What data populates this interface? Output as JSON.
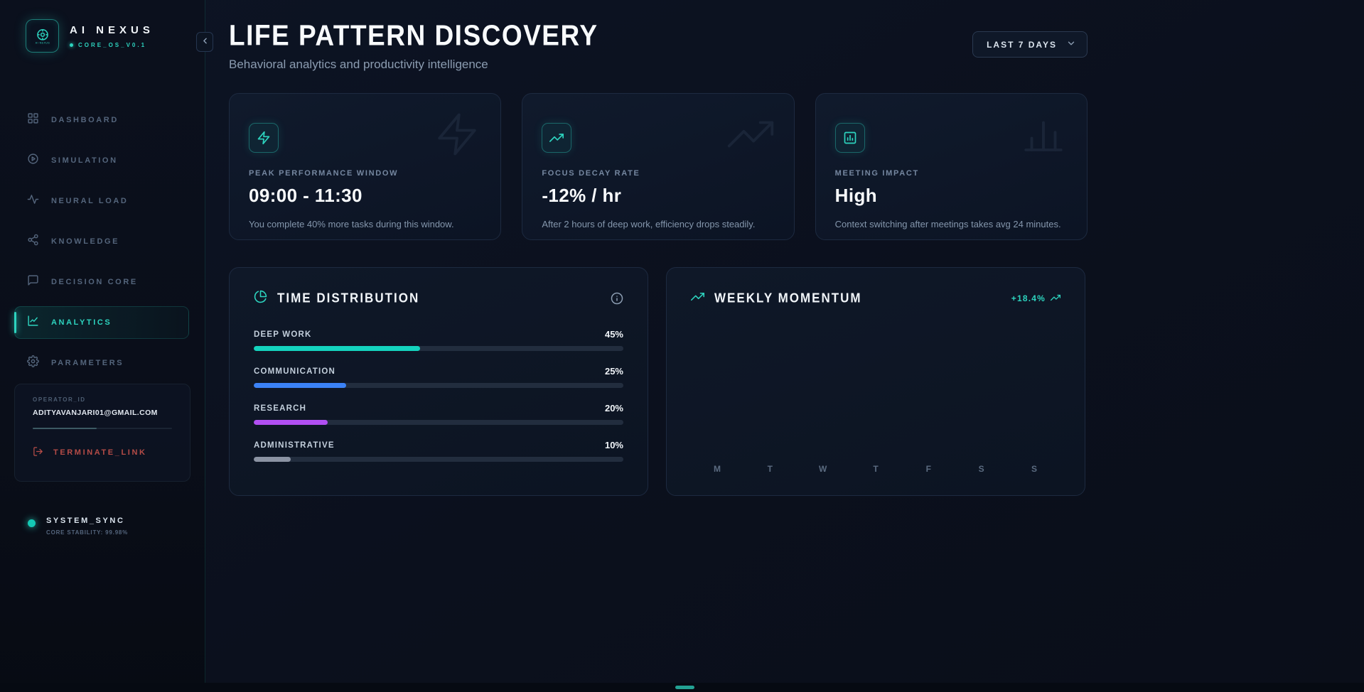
{
  "colors": {
    "accent": "#2dd4bf",
    "blue": "#3b82f6",
    "purple": "#b14ff2",
    "gray": "#8b93a3",
    "danger": "#b64c47"
  },
  "app": {
    "name": "AI NEXUS",
    "version": "CORE_OS_V0.1",
    "logo_icon": "ai-core-emblem-icon"
  },
  "sidebar": {
    "items": [
      {
        "label": "DASHBOARD",
        "icon": "dashboard-grid-icon"
      },
      {
        "label": "SIMULATION",
        "icon": "simulation-play-icon"
      },
      {
        "label": "NEURAL LOAD",
        "icon": "neural-pulse-icon"
      },
      {
        "label": "KNOWLEDGE",
        "icon": "knowledge-share-icon"
      },
      {
        "label": "DECISION CORE",
        "icon": "decision-chat-icon"
      },
      {
        "label": "ANALYTICS",
        "icon": "analytics-chart-icon",
        "active": true
      },
      {
        "label": "PARAMETERS",
        "icon": "parameters-gear-icon"
      }
    ],
    "operator": {
      "label": "OPERATOR_ID",
      "email": "ADITYAVANJARI01@GMAIL.COM",
      "terminate_label": "TERMINATE_LINK",
      "terminate_icon": "logout-icon"
    },
    "system": {
      "title": "SYSTEM_SYNC",
      "stability": "CORE STABILITY: 99.98%"
    },
    "collapse_icon": "chevron-left-icon"
  },
  "header": {
    "title": "LIFE PATTERN DISCOVERY",
    "subtitle": "Behavioral analytics and productivity intelligence",
    "range_label": "LAST 7 DAYS",
    "range_icon": "chevron-down-icon"
  },
  "stat_cards": [
    {
      "label": "PEAK PERFORMANCE WINDOW",
      "value": "09:00 - 11:30",
      "description": "You complete 40% more tasks during this window.",
      "icon": "bolt-icon"
    },
    {
      "label": "FOCUS DECAY RATE",
      "value": "-12% / hr",
      "description": "After 2 hours of deep work, efficiency drops steadily.",
      "icon": "trending-up-icon"
    },
    {
      "label": "MEETING IMPACT",
      "value": "High",
      "description": "Context switching after meetings takes avg 24 minutes.",
      "icon": "bar-chart-icon"
    }
  ],
  "time_distribution": {
    "title": "TIME DISTRIBUTION",
    "icon": "pie-chart-icon",
    "items": [
      {
        "label": "DEEP WORK",
        "value": "45%",
        "percent": 45,
        "color": "#14d3be"
      },
      {
        "label": "COMMUNICATION",
        "value": "25%",
        "percent": 25,
        "color": "#3b82f6"
      },
      {
        "label": "RESEARCH",
        "value": "20%",
        "percent": 20,
        "color": "#b14ff2"
      },
      {
        "label": "ADMINISTRATIVE",
        "value": "10%",
        "percent": 10,
        "color": "#8b93a3"
      }
    ]
  },
  "weekly_momentum": {
    "title": "WEEKLY MOMENTUM",
    "icon": "trending-up-icon",
    "badge": "+18.4%",
    "days": [
      "M",
      "T",
      "W",
      "T",
      "F",
      "S",
      "S"
    ]
  },
  "chart_data": [
    {
      "type": "bar",
      "title": "TIME DISTRIBUTION",
      "categories": [
        "DEEP WORK",
        "COMMUNICATION",
        "RESEARCH",
        "ADMINISTRATIVE"
      ],
      "values": [
        45,
        25,
        20,
        10
      ],
      "unit": "%",
      "orientation": "horizontal",
      "colors": [
        "#14d3be",
        "#3b82f6",
        "#b14ff2",
        "#8b93a3"
      ]
    },
    {
      "type": "line",
      "title": "WEEKLY MOMENTUM",
      "x": [
        "M",
        "T",
        "W",
        "T",
        "F",
        "S",
        "S"
      ],
      "values": [],
      "badge": "+18.4%",
      "note": "no visible series line rendered in chart area"
    }
  ]
}
